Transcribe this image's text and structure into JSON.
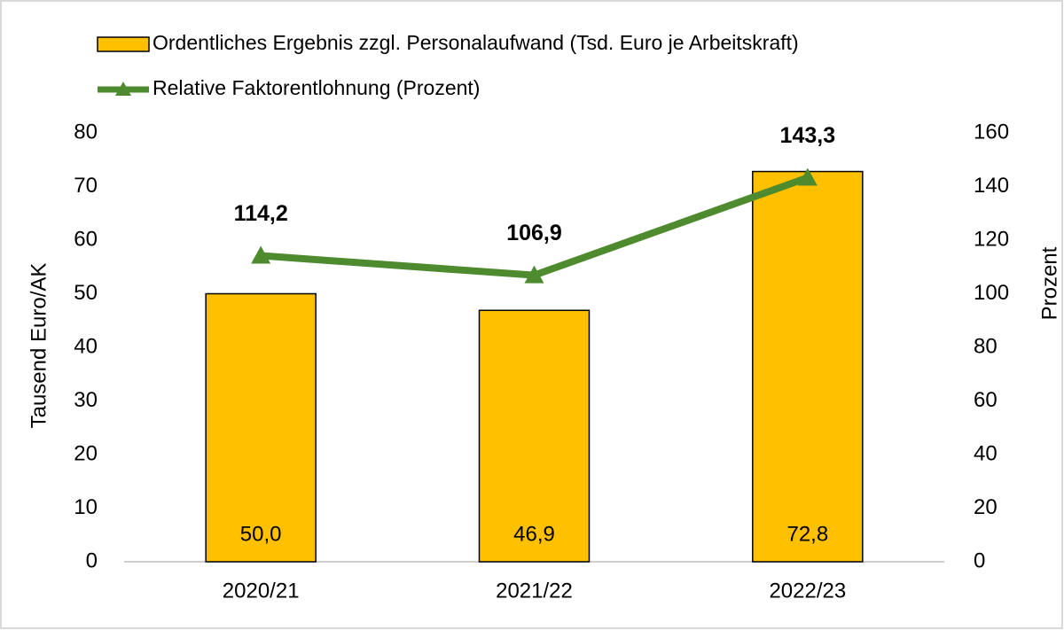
{
  "chart_data": {
    "type": "bar",
    "categories": [
      "2020/21",
      "2021/22",
      "2022/23"
    ],
    "series": [
      {
        "name": "Ordentliches Ergebnis zzgl. Personalaufwand (Tsd. Euro je Arbeitskraft)",
        "type": "bar",
        "color": "#ffc000",
        "values": [
          50.0,
          46.9,
          72.8
        ],
        "value_labels": [
          "50,0",
          "46,9",
          "72,8"
        ]
      },
      {
        "name": "Relative Faktorentlohnung (Prozent)",
        "type": "line",
        "axis": "y2",
        "color": "#4e8a2e",
        "values": [
          114.2,
          106.9,
          143.3
        ],
        "value_labels": [
          "114,2",
          "106,9",
          "143,3"
        ]
      }
    ],
    "ylabel": "Tausend Euro/AK",
    "y2label": "Prozent",
    "ylim": [
      0,
      80
    ],
    "yticks": [
      0,
      10,
      20,
      30,
      40,
      50,
      60,
      70,
      80
    ],
    "y2lim": [
      0,
      160
    ],
    "y2ticks": [
      0,
      20,
      40,
      60,
      80,
      100,
      120,
      140,
      160
    ],
    "grid": false
  }
}
